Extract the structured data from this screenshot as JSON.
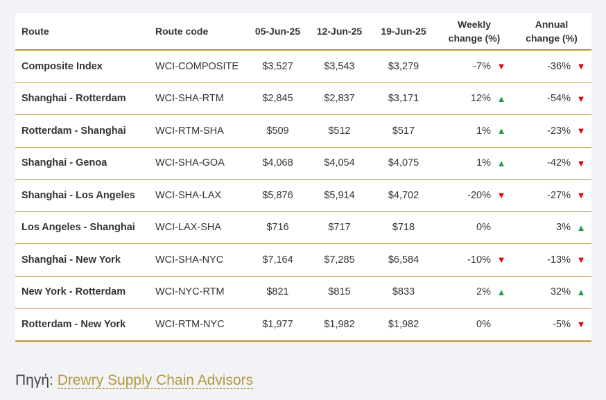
{
  "table": {
    "headers": {
      "route": "Route",
      "code": "Route code",
      "d1": "05-Jun-25",
      "d2": "12-Jun-25",
      "d3": "19-Jun-25",
      "weekly_1": "Weekly",
      "weekly_2": "change (%)",
      "annual_1": "Annual",
      "annual_2": "change (%)"
    },
    "rows": [
      {
        "route": "Composite Index",
        "code": "WCI-COMPOSITE",
        "d1": "$3,527",
        "d2": "$3,543",
        "d3": "$3,279",
        "weekly": "-7%",
        "weekly_dir": "down",
        "annual": "-36%",
        "annual_dir": "down"
      },
      {
        "route": "Shanghai - Rotterdam",
        "code": "WCI-SHA-RTM",
        "d1": "$2,845",
        "d2": "$2,837",
        "d3": "$3,171",
        "weekly": "12%",
        "weekly_dir": "up",
        "annual": "-54%",
        "annual_dir": "down"
      },
      {
        "route": "Rotterdam - Shanghai",
        "code": "WCI-RTM-SHA",
        "d1": "$509",
        "d2": "$512",
        "d3": "$517",
        "weekly": "1%",
        "weekly_dir": "up",
        "annual": "-23%",
        "annual_dir": "down"
      },
      {
        "route": "Shanghai - Genoa",
        "code": "WCI-SHA-GOA",
        "d1": "$4,068",
        "d2": "$4,054",
        "d3": "$4,075",
        "weekly": "1%",
        "weekly_dir": "up",
        "annual": "-42%",
        "annual_dir": "down"
      },
      {
        "route": "Shanghai - Los Angeles",
        "code": "WCI-SHA-LAX",
        "d1": "$5,876",
        "d2": "$5,914",
        "d3": "$4,702",
        "weekly": "-20%",
        "weekly_dir": "down",
        "annual": "-27%",
        "annual_dir": "down"
      },
      {
        "route": "Los Angeles - Shanghai",
        "code": "WCI-LAX-SHA",
        "d1": "$716",
        "d2": "$717",
        "d3": "$718",
        "weekly": "0%",
        "weekly_dir": "none",
        "annual": "3%",
        "annual_dir": "up"
      },
      {
        "route": "Shanghai - New York",
        "code": "WCI-SHA-NYC",
        "d1": "$7,164",
        "d2": "$7,285",
        "d3": "$6,584",
        "weekly": "-10%",
        "weekly_dir": "down",
        "annual": "-13%",
        "annual_dir": "down"
      },
      {
        "route": "New York - Rotterdam",
        "code": "WCI-NYC-RTM",
        "d1": "$821",
        "d2": "$815",
        "d3": "$833",
        "weekly": "2%",
        "weekly_dir": "up",
        "annual": "32%",
        "annual_dir": "up"
      },
      {
        "route": "Rotterdam - New York",
        "code": "WCI-RTM-NYC",
        "d1": "$1,977",
        "d2": "$1,982",
        "d3": "$1,982",
        "weekly": "0%",
        "weekly_dir": "none",
        "annual": "-5%",
        "annual_dir": "down"
      }
    ]
  },
  "arrows": {
    "up": "▲",
    "down": "▼"
  },
  "colors": {
    "up": "#1e9e3e",
    "down": "#e0000e",
    "accent": "#b5973c"
  },
  "source": {
    "label": "Πηγή:",
    "link_text": "Drewry Supply Chain Advisors"
  }
}
